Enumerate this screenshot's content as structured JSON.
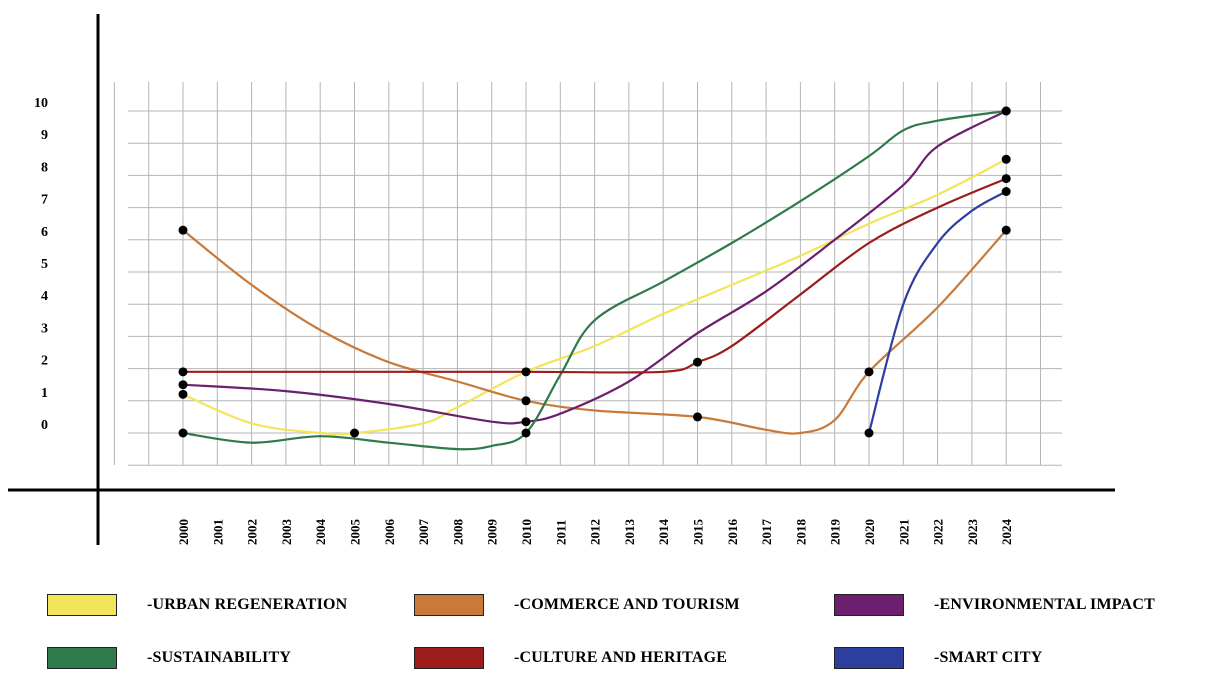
{
  "chart_data": {
    "type": "line",
    "x": [
      "2000",
      "2001",
      "2002",
      "2003",
      "2004",
      "2005",
      "2006",
      "2007",
      "2008",
      "2009",
      "2010",
      "2011",
      "2012",
      "2013",
      "2014",
      "2015",
      "2016",
      "2017",
      "2018",
      "2019",
      "2020",
      "2021",
      "2022",
      "2023",
      "2024"
    ],
    "y_ticks": [
      "0",
      "1",
      "2",
      "3",
      "4",
      "5",
      "6",
      "7",
      "8",
      "9",
      "10"
    ],
    "grid": true,
    "legend_position": "bottom",
    "series": [
      {
        "name": "-URBAN REGENERATION",
        "color": "#f2e55a",
        "points": [
          [
            2000,
            1.2
          ],
          [
            2002,
            0.3
          ],
          [
            2004,
            0.0
          ],
          [
            2005,
            0.0
          ],
          [
            2007,
            0.3
          ],
          [
            2008,
            0.8
          ],
          [
            2010,
            1.9
          ],
          [
            2012,
            2.7
          ],
          [
            2014,
            3.7
          ],
          [
            2016,
            4.6
          ],
          [
            2018,
            5.5
          ],
          [
            2020,
            6.5
          ],
          [
            2022,
            7.4
          ],
          [
            2024,
            8.5
          ]
        ],
        "markers": [
          [
            2000,
            1.2
          ],
          [
            2005,
            0.0
          ],
          [
            2024,
            8.5
          ]
        ]
      },
      {
        "name": "-COMMERCE AND TOURISM",
        "color": "#c87a3a",
        "points": [
          [
            2000,
            6.3
          ],
          [
            2002,
            4.6
          ],
          [
            2004,
            3.2
          ],
          [
            2006,
            2.2
          ],
          [
            2008,
            1.6
          ],
          [
            2010,
            1.0
          ],
          [
            2012,
            0.7
          ],
          [
            2015,
            0.5
          ],
          [
            2017,
            0.1
          ],
          [
            2018,
            0.0
          ],
          [
            2019,
            0.4
          ],
          [
            2020,
            1.9
          ],
          [
            2022,
            3.9
          ],
          [
            2024,
            6.3
          ]
        ],
        "markers": [
          [
            2000,
            6.3
          ],
          [
            2010,
            1.0
          ],
          [
            2015,
            0.5
          ],
          [
            2020,
            1.9
          ],
          [
            2024,
            6.3
          ]
        ]
      },
      {
        "name": "-ENVIRONMENTAL IMPACT",
        "color": "#6b1f6e",
        "points": [
          [
            2000,
            1.5
          ],
          [
            2003,
            1.3
          ],
          [
            2006,
            0.9
          ],
          [
            2009,
            0.35
          ],
          [
            2010,
            0.35
          ],
          [
            2011,
            0.6
          ],
          [
            2013,
            1.6
          ],
          [
            2015,
            3.1
          ],
          [
            2017,
            4.4
          ],
          [
            2019,
            6.0
          ],
          [
            2021,
            7.7
          ],
          [
            2022,
            8.9
          ],
          [
            2024,
            10.0
          ]
        ],
        "markers": [
          [
            2000,
            1.5
          ],
          [
            2010,
            0.35
          ],
          [
            2024,
            10.0
          ]
        ]
      },
      {
        "name": "-SUSTAINABILITY",
        "color": "#2e7a4a",
        "points": [
          [
            2000,
            0.0
          ],
          [
            2002,
            -0.3
          ],
          [
            2004,
            -0.1
          ],
          [
            2006,
            -0.3
          ],
          [
            2008,
            -0.5
          ],
          [
            2009,
            -0.4
          ],
          [
            2010,
            0.0
          ],
          [
            2011,
            1.8
          ],
          [
            2012,
            3.5
          ],
          [
            2014,
            4.7
          ],
          [
            2016,
            5.9
          ],
          [
            2018,
            7.2
          ],
          [
            2020,
            8.6
          ],
          [
            2021,
            9.4
          ],
          [
            2022,
            9.7
          ],
          [
            2024,
            10.0
          ]
        ],
        "markers": [
          [
            2000,
            0.0
          ],
          [
            2010,
            0.0
          ],
          [
            2024,
            10.0
          ]
        ]
      },
      {
        "name": "-CULTURE AND HERITAGE",
        "color": "#9c1b1b",
        "points": [
          [
            2000,
            1.9
          ],
          [
            2005,
            1.9
          ],
          [
            2010,
            1.9
          ],
          [
            2014,
            1.9
          ],
          [
            2015,
            2.2
          ],
          [
            2016,
            2.7
          ],
          [
            2018,
            4.3
          ],
          [
            2020,
            5.9
          ],
          [
            2022,
            7.0
          ],
          [
            2024,
            7.9
          ]
        ],
        "markers": [
          [
            2000,
            1.9
          ],
          [
            2010,
            1.9
          ],
          [
            2015,
            2.2
          ],
          [
            2024,
            7.9
          ]
        ]
      },
      {
        "name": "-SMART CITY",
        "color": "#2d3f9e",
        "points": [
          [
            2020,
            0.0
          ],
          [
            2021,
            4.0
          ],
          [
            2022,
            5.9
          ],
          [
            2023,
            6.9
          ],
          [
            2024,
            7.5
          ]
        ],
        "markers": [
          [
            2020,
            0.0
          ],
          [
            2024,
            7.5
          ]
        ]
      }
    ]
  }
}
